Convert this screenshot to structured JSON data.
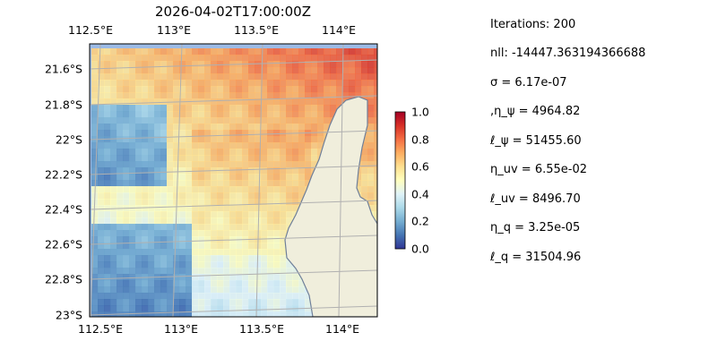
{
  "figure": {
    "title": "2026-04-02T17:00:00Z",
    "x_ticks": [
      "112.5°E",
      "113°E",
      "113.5°E",
      "114°E"
    ],
    "y_ticks": [
      "21.6°S",
      "21.8°S",
      "22°S",
      "22.2°S",
      "22.4°S",
      "22.6°S",
      "22.8°S",
      "23°S"
    ],
    "colorbar": {
      "ticks": [
        "1.0",
        "0.8",
        "0.6",
        "0.4",
        "0.2",
        "0.0"
      ],
      "colormap": "RdYlBu_r"
    },
    "colors": {
      "ocean": "#9cbbe6",
      "land": "#f0eedc",
      "coast": "#6f7f99",
      "grid": "#b0b0b0"
    }
  },
  "stats": [
    "Iterations: 200",
    "nll: -14447.363194366688",
    "σ = 6.17e-07",
    ",η_ψ = 4964.82",
    "ℓ_ψ = 51455.60",
    "η_uv = 6.55e-02",
    "ℓ_uv = 8496.70",
    "η_q = 3.25e-05",
    "ℓ_q = 31504.96"
  ]
}
